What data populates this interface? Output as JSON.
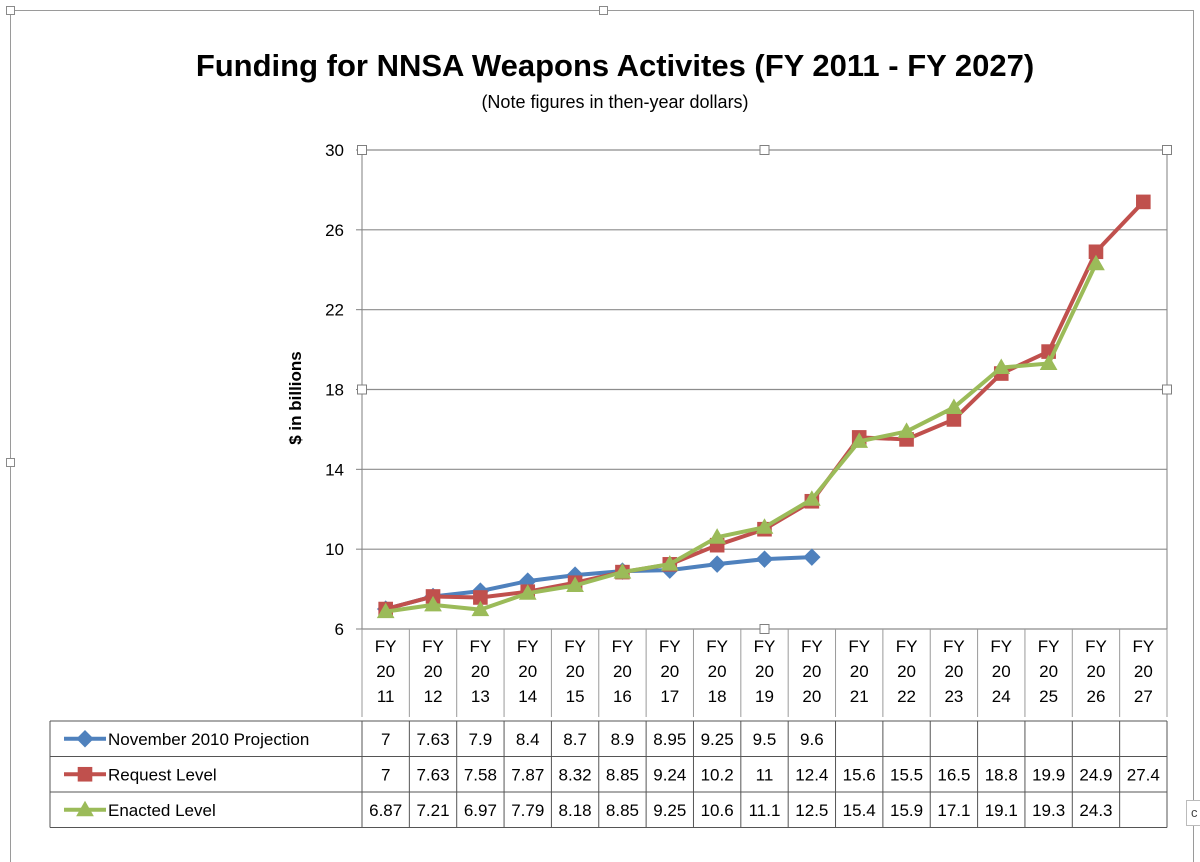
{
  "chart_data": {
    "type": "line",
    "title": "Funding for NNSA Weapons Activites (FY 2011 - FY 2027)",
    "subtitle": "(Note figures in then-year dollars)",
    "ylabel": "$ in billions",
    "ylim": [
      6,
      30
    ],
    "yticks": [
      6,
      10,
      14,
      18,
      22,
      26,
      30
    ],
    "grid": true,
    "categories": [
      [
        "FY",
        "20",
        "11"
      ],
      [
        "FY",
        "20",
        "12"
      ],
      [
        "FY",
        "20",
        "13"
      ],
      [
        "FY",
        "20",
        "14"
      ],
      [
        "FY",
        "20",
        "15"
      ],
      [
        "FY",
        "20",
        "16"
      ],
      [
        "FY",
        "20",
        "17"
      ],
      [
        "FY",
        "20",
        "18"
      ],
      [
        "FY",
        "20",
        "19"
      ],
      [
        "FY",
        "20",
        "20"
      ],
      [
        "FY",
        "20",
        "21"
      ],
      [
        "FY",
        "20",
        "22"
      ],
      [
        "FY",
        "20",
        "23"
      ],
      [
        "FY",
        "20",
        "24"
      ],
      [
        "FY",
        "20",
        "25"
      ],
      [
        "FY",
        "20",
        "26"
      ],
      [
        "FY",
        "20",
        "27"
      ]
    ],
    "series": [
      {
        "name": "November 2010 Projection",
        "color": "#4f81bd",
        "marker": "diamond",
        "values": [
          7,
          7.63,
          7.9,
          8.4,
          8.7,
          8.9,
          8.95,
          9.25,
          9.5,
          9.6,
          null,
          null,
          null,
          null,
          null,
          null,
          null
        ],
        "labels": [
          "7",
          "7.63",
          "7.9",
          "8.4",
          "8.7",
          "8.9",
          "8.95",
          "9.25",
          "9.5",
          "9.6",
          "",
          "",
          "",
          "",
          "",
          "",
          ""
        ]
      },
      {
        "name": "Request Level",
        "color": "#c0504d",
        "marker": "square",
        "values": [
          7,
          7.63,
          7.58,
          7.87,
          8.32,
          8.85,
          9.24,
          10.2,
          11,
          12.4,
          15.6,
          15.5,
          16.5,
          18.8,
          19.9,
          24.9,
          27.4
        ],
        "labels": [
          "7",
          "7.63",
          "7.58",
          "7.87",
          "8.32",
          "8.85",
          "9.24",
          "10.2",
          "11",
          "12.4",
          "15.6",
          "15.5",
          "16.5",
          "18.8",
          "19.9",
          "24.9",
          "27.4"
        ]
      },
      {
        "name": "Enacted Level",
        "color": "#9bbb59",
        "marker": "triangle",
        "values": [
          6.87,
          7.21,
          6.97,
          7.79,
          8.18,
          8.85,
          9.25,
          10.6,
          11.1,
          12.5,
          15.4,
          15.9,
          17.1,
          19.1,
          19.3,
          24.3,
          null
        ],
        "labels": [
          "6.87",
          "7.21",
          "6.97",
          "7.79",
          "8.18",
          "8.85",
          "9.25",
          "10.6",
          "11.1",
          "12.5",
          "15.4",
          "15.9",
          "17.1",
          "19.1",
          "19.3",
          "24.3",
          ""
        ]
      }
    ]
  },
  "edge_label": "c"
}
